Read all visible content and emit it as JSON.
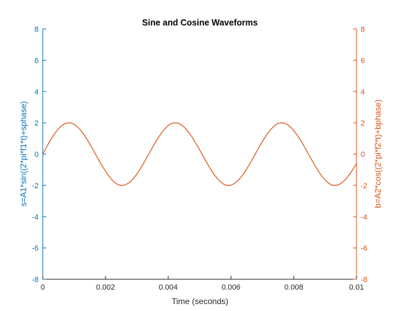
{
  "chart_data": {
    "type": "line",
    "title": "Sine and Cosine Waveforms",
    "xlabel": "Time (seconds)",
    "ylabel_left": "s=A1*sin((2*pi*f1*t)+sphase)",
    "ylabel_right": "b=A2*cos((2*pi*f2*t)+bphase)",
    "xlim": [
      0,
      0.01
    ],
    "ylim_left": [
      -8,
      8
    ],
    "ylim_right": [
      -8,
      8
    ],
    "x_ticks": [
      "0",
      "0.002",
      "0.004",
      "0.006",
      "0.008",
      "0.01"
    ],
    "y_ticks_left": [
      "8",
      "6",
      "4",
      "2",
      "0",
      "-2",
      "-4",
      "-6",
      "-8"
    ],
    "y_ticks_right": [
      "8",
      "6",
      "4",
      "2",
      "0",
      "-2",
      "-4",
      "-6",
      "-8"
    ],
    "grid": false,
    "series": [
      {
        "axis": "right",
        "color": "#D95319",
        "amplitude": 2,
        "frequency_hz": 300,
        "x": [
          0,
          0.0001,
          0.0002,
          0.0003,
          0.0004,
          0.0005,
          0.0006,
          0.0007,
          0.0008,
          0.0009,
          0.001,
          0.0011,
          0.0012,
          0.0013,
          0.0014,
          0.0015,
          0.0016,
          0.0017,
          0.0018,
          0.0019,
          0.002,
          0.0021,
          0.0022,
          0.0023,
          0.0024,
          0.0025,
          0.0026,
          0.0027,
          0.0028,
          0.0029,
          0.003,
          0.0031,
          0.0032,
          0.0033,
          0.0034,
          0.0035,
          0.0036,
          0.0037,
          0.0038,
          0.0039,
          0.004,
          0.0041,
          0.0042,
          0.0043,
          0.0044,
          0.0045,
          0.0046,
          0.0047,
          0.0048,
          0.0049,
          0.005,
          0.0051,
          0.0052,
          0.0053,
          0.0054,
          0.0055,
          0.0056,
          0.0057,
          0.0058,
          0.0059,
          0.006,
          0.0061,
          0.0062,
          0.0063,
          0.0064,
          0.0065,
          0.0066,
          0.0067,
          0.0068,
          0.0069,
          0.007,
          0.0071,
          0.0072,
          0.0073,
          0.0074,
          0.0075,
          0.0076,
          0.0077,
          0.0078,
          0.0079,
          0.008,
          0.0081,
          0.0082,
          0.0083,
          0.0084,
          0.0085,
          0.0086,
          0.0087,
          0.0088,
          0.0089,
          0.009,
          0.0091,
          0.0092,
          0.0093,
          0.0094,
          0.0095,
          0.0096,
          0.0097,
          0.0098,
          0.0099,
          0.01
        ],
        "y": [
          0,
          0.375,
          0.737,
          1.071,
          1.368,
          1.618,
          1.813,
          1.948,
          2.0,
          1.992,
          1.902,
          1.753,
          1.543,
          1.284,
          0.982,
          0.649,
          0.297,
          -0.062,
          -0.427,
          -0.775,
          -1.095,
          -1.388,
          -1.631,
          -1.82,
          -1.955,
          -2.0,
          -1.986,
          -1.895,
          -1.746,
          -1.534,
          -1.274,
          -0.972,
          -0.638,
          -0.286,
          0.073,
          0.437,
          0.785,
          1.104,
          1.396,
          1.636,
          1.826,
          1.958,
          2.0,
          1.985,
          1.891,
          1.74,
          1.524,
          1.263,
          0.962,
          0.628,
          0.274,
          -0.085,
          -0.448,
          -0.795,
          -1.113,
          -1.404,
          -1.642,
          -1.83,
          -1.96,
          -2.0,
          -1.983,
          -1.889,
          -1.733,
          -1.515,
          -1.252,
          -0.951,
          -0.617,
          -0.262,
          0.097,
          0.458,
          0.806,
          1.122,
          1.411,
          1.649,
          1.834,
          1.963,
          2.0,
          1.981,
          1.885,
          1.727,
          1.505,
          1.241,
          0.939,
          0.606,
          0.25,
          -0.108,
          -0.469,
          -0.816,
          -1.131,
          -1.418,
          -1.655,
          -1.838,
          -1.966,
          -2.0,
          -1.979,
          -1.88,
          -1.72,
          -1.496,
          -1.23,
          -0.928,
          -0.595
        ]
      }
    ]
  }
}
